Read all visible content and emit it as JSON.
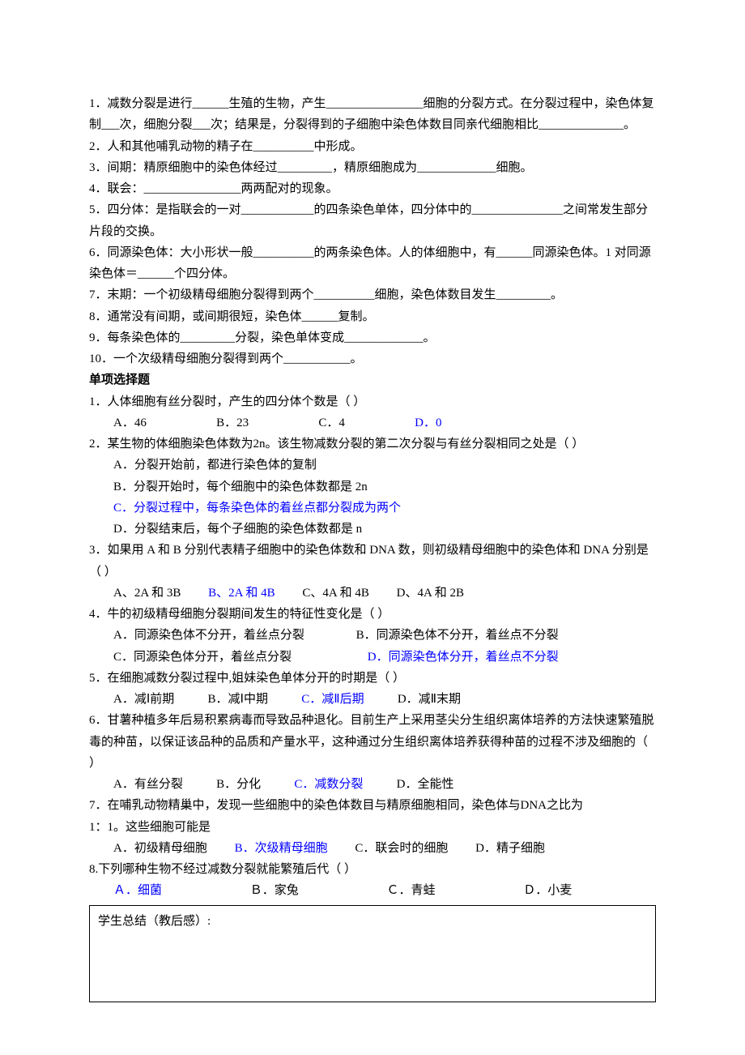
{
  "colors": {
    "answer_blue": "#0000ff",
    "text_black": "#000000",
    "bg": "#ffffff",
    "border": "#000000"
  },
  "typography": {
    "font_family": "SimSun / 宋体",
    "font_size_pt": 11,
    "line_height": 1.75
  },
  "fill": {
    "q1": "1．减数分裂是进行______生殖的生物，产生________________细胞的分裂方式。在分裂过程中，染色体复制___次，细胞分裂___次；结果是，分裂得到的子细胞中染色体数目同亲代细胞相比______________。",
    "q2": "2．人和其他哺乳动物的精子在__________中形成。",
    "q3": "3．间期：精原细胞中的染色体经过_________，精原细胞成为_____________细胞。",
    "q4": "4．联会：________________两两配对的现象。",
    "q5": "5．四分体：是指联会的一对____________的四条染色单体，四分体中的_______________之间常发生部分片段的交换。",
    "q6": "6．同源染色体：大小形状一般__________的两条染色体。人的体细胞中，有______同源染色体。1 对同源染色体＝______个四分体。",
    "q7": "7．末期：一个初级精母细胞分裂得到两个__________细胞，染色体数目发生_________。",
    "q8": "8．通常没有间期，或间期很短，染色体______复制。",
    "q9": "9．每条染色体的_________分裂，染色单体变成_____________。",
    "q10": "10．一个次级精母细胞分裂得到两个___________。"
  },
  "mc_title": "单项选择题",
  "mc": {
    "q1": {
      "stem": "1．人体细胞有丝分裂时，产生的四分体个数是（  ）",
      "A": "A．46",
      "B": "B．23",
      "C": "C．4",
      "D": "D．0",
      "answer": "D"
    },
    "q2": {
      "stem": "2．某生物的体细胞染色体数为2n。该生物减数分裂的第二次分裂与有丝分裂相同之处是（  ）",
      "A": "A．分裂开始前，都进行染色体的复制",
      "B": "B．分裂开始时，每个细胞中的染色体数都是 2n",
      "C": "C．分裂过程中，每条染色体的着丝点都分裂成为两个",
      "D": "D．分裂结束后，每个子细胞的染色体数都是 n",
      "answer": "C"
    },
    "q3": {
      "stem": "3．如果用 A 和 B 分别代表精子细胞中的染色体数和 DNA 数，则初级精母细胞中的染色体和 DNA 分别是（  ）",
      "A": "A、2A 和 3B",
      "B": "B、2A 和 4B",
      "C": "C、4A 和 4B",
      "D": "D、4A 和 2B",
      "answer": "B"
    },
    "q4": {
      "stem": "4．牛的初级精母细胞分裂期间发生的特征性变化是（  ）",
      "A": "A．同源染色体不分开，着丝点分裂",
      "B": "B．同源染色体不分开，着丝点不分裂",
      "C": "C．同源染色体分开，着丝点分裂",
      "D": "D．同源染色体分开，着丝点不分裂",
      "answer": "D"
    },
    "q5": {
      "stem": "5．在细胞减数分裂过程中,姐妹染色单体分开的时期是（  ）",
      "A": "A．减Ⅰ前期",
      "B": "B．减Ⅰ中期",
      "C": "C．减Ⅱ后期",
      "D": "D．减Ⅱ末期",
      "answer": "C"
    },
    "q6": {
      "stem": "6．甘薯种植多年后易积累病毒而导致品种退化。目前生产上采用茎尖分生组织离体培养的方法快速繁殖脱毒的种苗，以保证该品种的品质和产量水平，这种通过分生组织离体培养获得种苗的过程不涉及细胞的（    ）",
      "A": "A．有丝分裂",
      "B": "B．分化",
      "C": "C．减数分裂",
      "D": "D．全能性",
      "answer": "C"
    },
    "q7": {
      "stem_a": "7．在哺乳动物精巢中，发现一些细胞中的染色体数目与精原细胞相同，染色体与DNA之比为",
      "stem_b": "1：1。这些细胞可能是",
      "A": "A．初级精母细胞",
      "B": "B．次级精母细胞",
      "C": "C．联会时的细胞",
      "D": "D．精子细胞",
      "answer": "B"
    },
    "q8": {
      "stem": "8.下列哪种生物不经过减数分裂就能繁殖后代（    ）",
      "A": "Ａ．细菌",
      "B": "Ｂ．家兔",
      "C": "Ｃ．青蛙",
      "D": "Ｄ．小麦",
      "answer": "A"
    }
  },
  "summary_box": "学生总结（教后感）:"
}
